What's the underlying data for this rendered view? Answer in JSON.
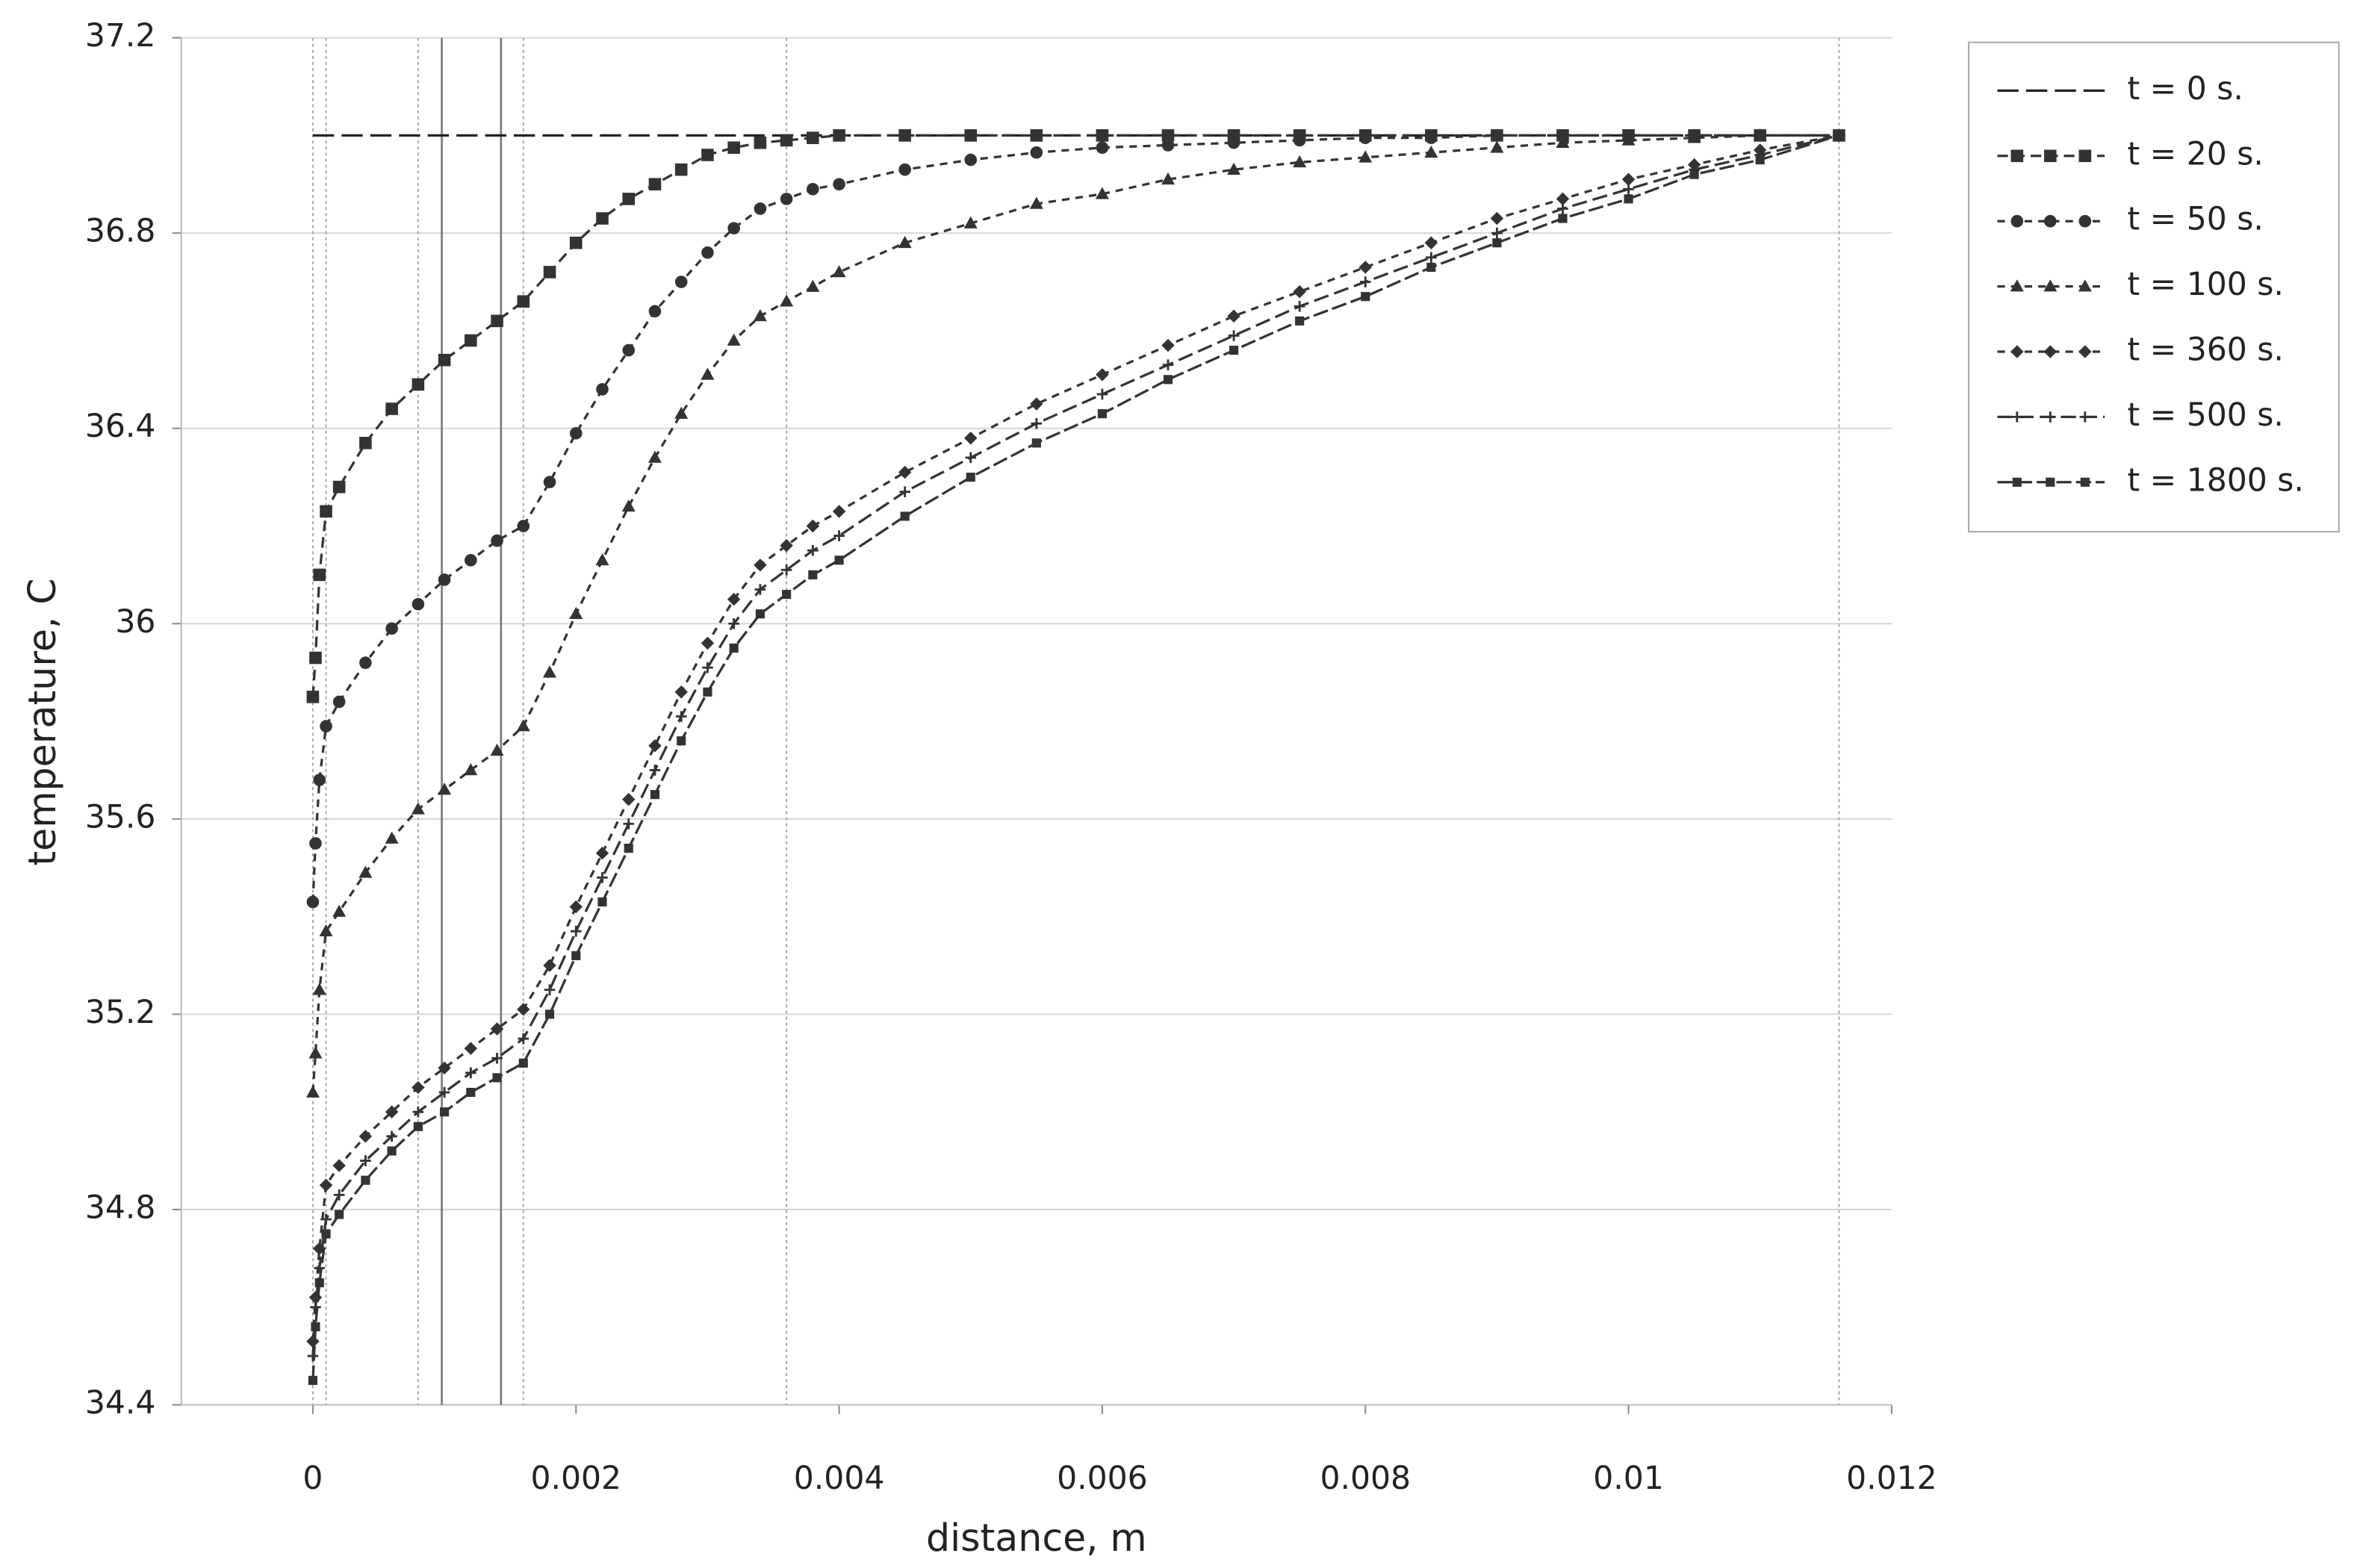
{
  "chart_data": {
    "type": "line",
    "x_label": "distance, m",
    "y_label": "temperature, C",
    "xlim": [
      -0.001,
      0.012
    ],
    "ylim": [
      34.4,
      37.2
    ],
    "xticks": [
      0,
      0.002,
      0.004,
      0.006,
      0.008,
      0.01,
      0.012
    ],
    "yticks": [
      34.4,
      34.8,
      35.2,
      35.6,
      36,
      36.4,
      36.8,
      37.2
    ],
    "grid": true,
    "legend": "outside-right",
    "reference_lines": [
      {
        "x": 0,
        "style": "dotted"
      },
      {
        "x": 0.0001,
        "style": "dotted"
      },
      {
        "x": 0.0008,
        "style": "dotted"
      },
      {
        "x": 0.00098,
        "style": "solid"
      },
      {
        "x": 0.00143,
        "style": "solid"
      },
      {
        "x": 0.0016,
        "style": "dotted"
      },
      {
        "x": 0.0036,
        "style": "dotted"
      },
      {
        "x": 0.0116,
        "style": "dotted"
      }
    ],
    "x": [
      0,
      2e-05,
      5e-05,
      0.0001,
      0.0002,
      0.0004,
      0.0006,
      0.0008,
      0.001,
      0.0012,
      0.0014,
      0.0016,
      0.0018,
      0.002,
      0.0022,
      0.0024,
      0.0026,
      0.0028,
      0.003,
      0.0032,
      0.0034,
      0.0036,
      0.0038,
      0.004,
      0.0045,
      0.005,
      0.0055,
      0.006,
      0.0065,
      0.007,
      0.0075,
      0.008,
      0.0085,
      0.009,
      0.0095,
      0.01,
      0.0105,
      0.011,
      0.0116
    ],
    "series": [
      {
        "name": "t = 0 s.",
        "color": "#222222",
        "marker": "none",
        "dash": "14,5",
        "values": [
          37,
          37,
          37,
          37,
          37,
          37,
          37,
          37,
          37,
          37,
          37,
          37,
          37,
          37,
          37,
          37,
          37,
          37,
          37,
          37,
          37,
          37,
          37,
          37,
          37,
          37,
          37,
          37,
          37,
          37,
          37,
          37,
          37,
          37,
          37,
          37,
          37,
          37,
          37
        ]
      },
      {
        "name": "t = 20 s.",
        "color": "#333333",
        "marker": "square",
        "dash": "7,4",
        "values": [
          35.85,
          35.93,
          36.1,
          36.23,
          36.28,
          36.37,
          36.44,
          36.49,
          36.54,
          36.58,
          36.62,
          36.66,
          36.72,
          36.78,
          36.83,
          36.87,
          36.9,
          36.93,
          36.96,
          36.975,
          36.985,
          36.99,
          36.995,
          37,
          37,
          37,
          37,
          37,
          37,
          37,
          37,
          37,
          37,
          37,
          37,
          37,
          37,
          37,
          37
        ]
      },
      {
        "name": "t = 50 s.",
        "color": "#333333",
        "marker": "circle",
        "dash": "5,4",
        "values": [
          35.43,
          35.55,
          35.68,
          35.79,
          35.84,
          35.92,
          35.99,
          36.04,
          36.09,
          36.13,
          36.17,
          36.2,
          36.29,
          36.39,
          36.48,
          36.56,
          36.64,
          36.7,
          36.76,
          36.81,
          36.85,
          36.87,
          36.89,
          36.9,
          36.93,
          36.95,
          36.965,
          36.975,
          36.98,
          36.985,
          36.99,
          36.995,
          36.995,
          37,
          37,
          37,
          37,
          37,
          37
        ]
      },
      {
        "name": "t = 100 s.",
        "color": "#333333",
        "marker": "triangle",
        "dash": "5,4",
        "values": [
          35.04,
          35.12,
          35.25,
          35.37,
          35.41,
          35.49,
          35.56,
          35.62,
          35.66,
          35.7,
          35.74,
          35.79,
          35.9,
          36.02,
          36.13,
          36.24,
          36.34,
          36.43,
          36.51,
          36.58,
          36.63,
          36.66,
          36.69,
          36.72,
          36.78,
          36.82,
          36.86,
          36.88,
          36.91,
          36.93,
          36.945,
          36.955,
          36.965,
          36.975,
          36.985,
          36.99,
          36.995,
          37,
          37
        ]
      },
      {
        "name": "t = 360 s.",
        "color": "#333333",
        "marker": "diamond",
        "dash": "5,4",
        "values": [
          34.53,
          34.62,
          34.72,
          34.85,
          34.89,
          34.95,
          35.0,
          35.05,
          35.09,
          35.13,
          35.17,
          35.21,
          35.3,
          35.42,
          35.53,
          35.64,
          35.75,
          35.86,
          35.96,
          36.05,
          36.12,
          36.16,
          36.2,
          36.23,
          36.31,
          36.38,
          36.45,
          36.51,
          36.57,
          36.63,
          36.68,
          36.73,
          36.78,
          36.83,
          36.87,
          36.91,
          36.94,
          36.97,
          37
        ]
      },
      {
        "name": "t = 500 s.",
        "color": "#333333",
        "marker": "plus",
        "dash": "10,4",
        "values": [
          34.5,
          34.6,
          34.68,
          34.78,
          34.83,
          34.9,
          34.95,
          35.0,
          35.04,
          35.08,
          35.11,
          35.15,
          35.25,
          35.37,
          35.48,
          35.59,
          35.7,
          35.81,
          35.91,
          36.0,
          36.07,
          36.11,
          36.15,
          36.18,
          36.27,
          36.34,
          36.41,
          36.47,
          36.53,
          36.59,
          36.65,
          36.7,
          36.75,
          36.8,
          36.85,
          36.89,
          36.93,
          36.96,
          37
        ]
      },
      {
        "name": "t = 1800 s.",
        "color": "#333333",
        "marker": "smallsquare",
        "dash": "10,3",
        "values": [
          34.45,
          34.56,
          34.65,
          34.75,
          34.79,
          34.86,
          34.92,
          34.97,
          35.0,
          35.04,
          35.07,
          35.1,
          35.2,
          35.32,
          35.43,
          35.54,
          35.65,
          35.76,
          35.86,
          35.95,
          36.02,
          36.06,
          36.1,
          36.13,
          36.22,
          36.3,
          36.37,
          36.43,
          36.5,
          36.56,
          36.62,
          36.67,
          36.73,
          36.78,
          36.83,
          36.87,
          36.92,
          36.95,
          37
        ]
      }
    ]
  }
}
